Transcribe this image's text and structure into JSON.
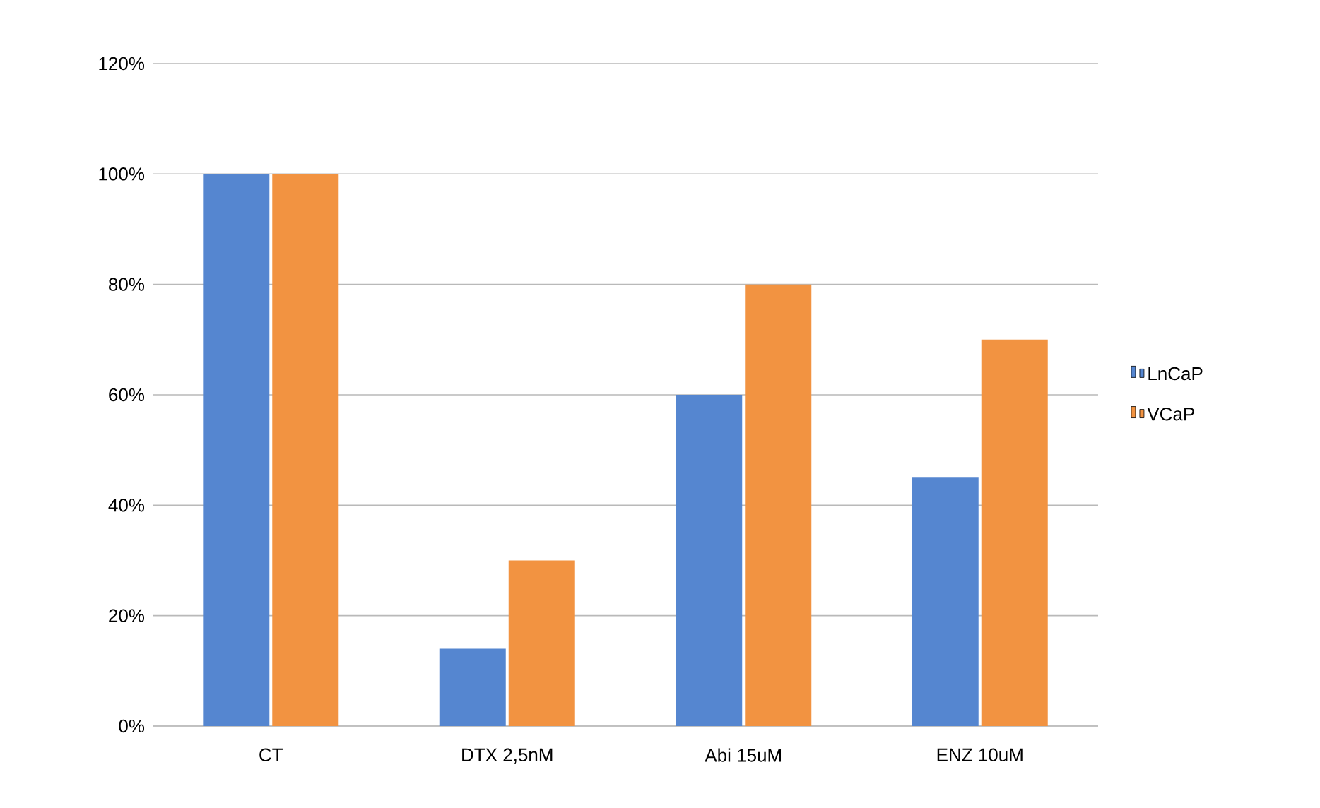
{
  "chart_data": {
    "type": "bar",
    "categories": [
      "CT",
      "DTX 2,5nM",
      "Abi 15uM",
      "ENZ 10uM"
    ],
    "series": [
      {
        "name": "LnCaP",
        "color": "#5586d0",
        "values": [
          100,
          14,
          60,
          45
        ]
      },
      {
        "name": "VCaP",
        "color": "#f29341",
        "values": [
          100,
          30,
          80,
          70
        ]
      }
    ],
    "ylim": [
      0,
      120
    ],
    "yticks": [
      {
        "value": 0,
        "label": "0%"
      },
      {
        "value": 20,
        "label": "20%"
      },
      {
        "value": 40,
        "label": "40%"
      },
      {
        "value": 60,
        "label": "60%"
      },
      {
        "value": 80,
        "label": "80%"
      },
      {
        "value": 100,
        "label": "100%"
      },
      {
        "value": 120,
        "label": "120%"
      }
    ],
    "grid": "y",
    "legend": "right"
  }
}
